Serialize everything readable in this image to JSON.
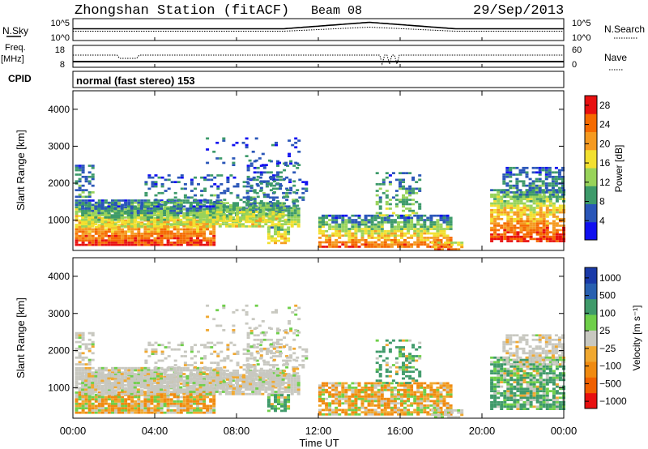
{
  "header": {
    "title": "Zhongshan Station (fitACF)",
    "beam": "Beam 08",
    "date": "29/Sep/2013"
  },
  "top_panels": {
    "nsky_label": "N.Sky",
    "nsky_ticks": [
      "10^5",
      "10^0"
    ],
    "nsearch_label": "N.Search",
    "nsearch_ticks": [
      "10^5",
      "10^0"
    ],
    "freq_label_line1": "Freq.",
    "freq_label_line2": "[MHz]",
    "freq_ticks": [
      "18",
      "8"
    ],
    "nave_label": "Nave",
    "nave_ticks": [
      "60",
      "0"
    ],
    "cpid_label": "CPID",
    "cpid_text": "normal (fast stereo) 153"
  },
  "colors": {
    "power_scale": [
      "#1010f0",
      "#2a56b8",
      "#3d9a6a",
      "#98d35a",
      "#f2e030",
      "#f59a20",
      "#f56a00",
      "#e81010"
    ],
    "velocity_scale": [
      "#e81010",
      "#f06000",
      "#f08a10",
      "#f0a830",
      "#c8c8c0",
      "#6fcf4a",
      "#3f9a6a",
      "#2860b0",
      "#1a3aa8"
    ]
  },
  "chart_data": [
    {
      "type": "heatmap",
      "name": "power",
      "xlabel": "",
      "ylabel": "Slant Range [km]",
      "x_ticks": [
        "00:00",
        "04:00",
        "08:00",
        "12:00",
        "16:00",
        "20:00",
        "00:00"
      ],
      "y_ticks": [
        1000,
        2000,
        3000,
        4000
      ],
      "xlim_hours": [
        0,
        24
      ],
      "ylim": [
        180,
        4500
      ],
      "colorbar_label": "Power [dB]",
      "colorbar_ticks": [
        4,
        8,
        12,
        16,
        20,
        24,
        28
      ],
      "colorbar_range": [
        0,
        30
      ]
    },
    {
      "type": "heatmap",
      "name": "velocity",
      "xlabel": "Time UT",
      "ylabel": "Slant Range [km]",
      "x_ticks": [
        "00:00",
        "04:00",
        "08:00",
        "12:00",
        "16:00",
        "20:00",
        "00:00"
      ],
      "y_ticks": [
        1000,
        2000,
        3000,
        4000
      ],
      "xlim_hours": [
        0,
        24
      ],
      "ylim": [
        180,
        4500
      ],
      "colorbar_label": "Velocity [m s⁻¹]",
      "colorbar_ticks": [
        "1000",
        "500",
        "100",
        "25",
        "−25",
        "−100",
        "−500",
        "−1000"
      ]
    }
  ]
}
